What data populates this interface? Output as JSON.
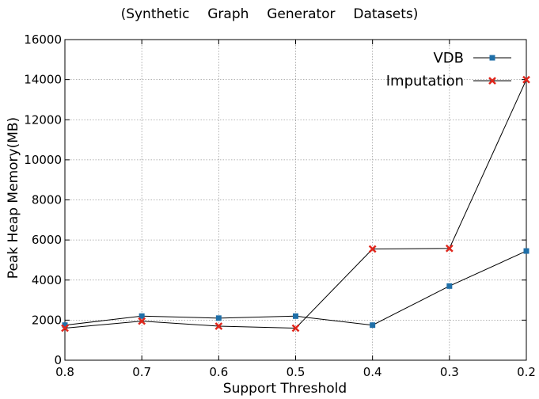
{
  "chart_data": {
    "type": "line",
    "title": "(Synthetic  Graph  Generator  Datasets)",
    "xlabel": "Support Threshold",
    "ylabel": "Peak Heap Memory(MB)",
    "categories": [
      "0.8",
      "0.7",
      "0.6",
      "0.5",
      "0.4",
      "0.3",
      "0.2"
    ],
    "yticks": [
      "0",
      "2000",
      "4000",
      "6000",
      "8000",
      "10000",
      "12000",
      "14000",
      "16000"
    ],
    "ylim": [
      0,
      16000
    ],
    "grid": true,
    "legend_position": "top-right",
    "series": [
      {
        "name": "VDB",
        "marker": "square",
        "color": "#1f6fa8",
        "values": [
          1750,
          2200,
          2100,
          2200,
          1750,
          3700,
          5450
        ]
      },
      {
        "name": "Imputation",
        "marker": "x",
        "color": "#e0261c",
        "values": [
          1600,
          1950,
          1700,
          1600,
          5550,
          5580,
          14000
        ]
      }
    ]
  }
}
